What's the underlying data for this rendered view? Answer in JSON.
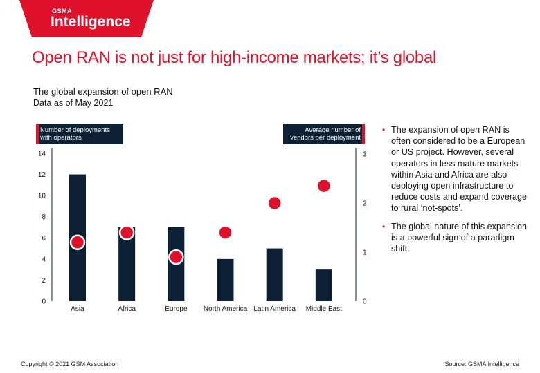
{
  "brand": {
    "small": "GSMA",
    "big": "Intelligence",
    "color": "#e0112b"
  },
  "headline": "Open RAN is not just for high-income markets; it’s global",
  "chart_data": {
    "type": "bar",
    "title": "The global expansion of open RAN",
    "subtitle": "Data as of May 2021",
    "categories": [
      "Asia",
      "Africa",
      "Europe",
      "North America",
      "Latin America",
      "Middle East"
    ],
    "series": [
      {
        "name": "Number of deployments with operators",
        "type": "bar",
        "axis": "left",
        "values": [
          12,
          7,
          7,
          4,
          5,
          3
        ],
        "color": "#0c1f33"
      },
      {
        "name": "Average number of vendors per deployment",
        "type": "scatter",
        "axis": "right",
        "values": [
          1.2,
          1.4,
          0.9,
          1.4,
          2.0,
          2.35
        ],
        "color": "#e0112b"
      }
    ],
    "left_axis": {
      "label": "Number of deployments with operators",
      "ylim": [
        0,
        14
      ],
      "ticks": [
        "0",
        "2",
        "4",
        "6",
        "8",
        "10",
        "12",
        "14"
      ]
    },
    "right_axis": {
      "label": "Average number of vendors per deployment",
      "ylim": [
        0,
        3
      ],
      "ticks": [
        "0",
        "1",
        "2",
        "3"
      ]
    }
  },
  "bullets": [
    "The expansion of open RAN is often considered to be a European or US project. However, several operators in less mature markets within Asia and Africa are also deploying open infrastructure to reduce costs and expand coverage to rural ‘not-spots’.",
    "The global nature of this expansion is a powerful sign of a paradigm shift."
  ],
  "bullet_symbol": "•",
  "footer": {
    "copyright": "Copyright © 2021 GSM Association",
    "source": "Source: GSMA Intelligence"
  }
}
